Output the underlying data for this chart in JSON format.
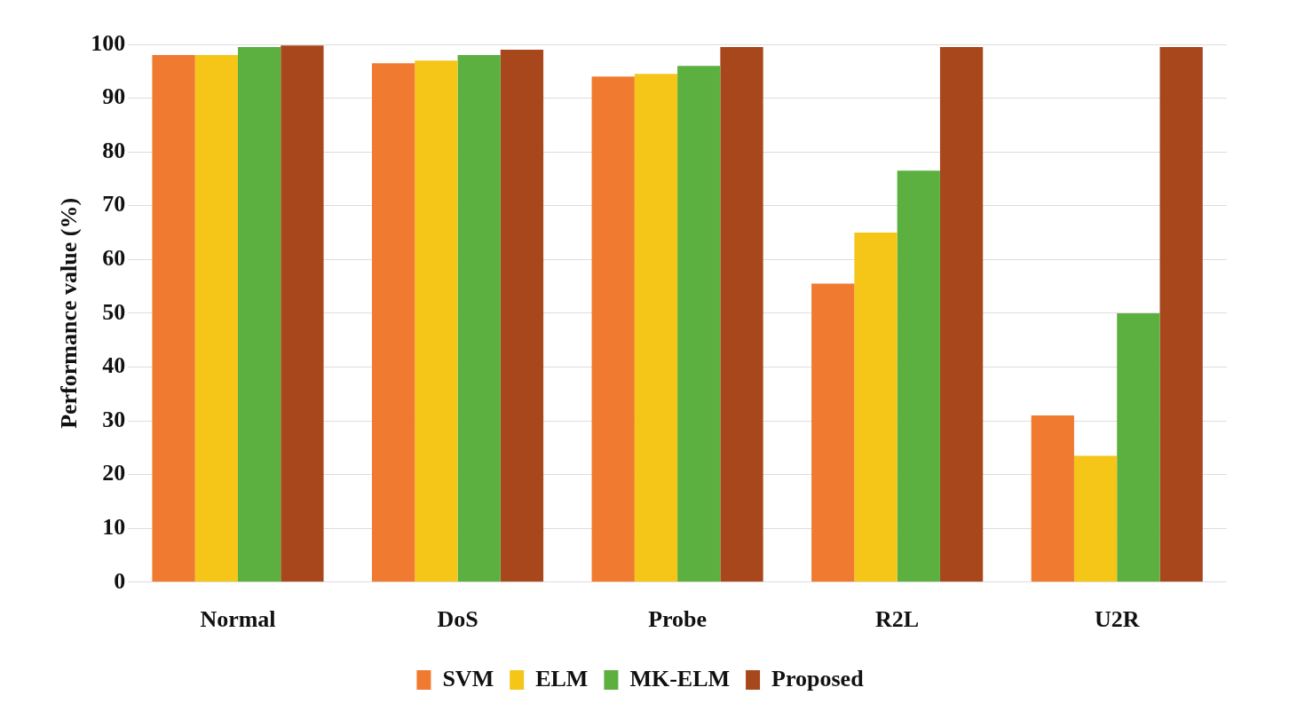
{
  "chart_data": {
    "type": "bar",
    "ylabel": "Performance value (%)",
    "categories": [
      "Normal",
      "DoS",
      "Probe",
      "R2L",
      "U2R"
    ],
    "series": [
      {
        "name": "SVM",
        "color": "#f07a30",
        "values": [
          98,
          96.5,
          94,
          55.5,
          31
        ]
      },
      {
        "name": "ELM",
        "color": "#f5c518",
        "values": [
          98,
          97,
          94.5,
          65,
          23.5
        ]
      },
      {
        "name": "MK-ELM",
        "color": "#5cb040",
        "values": [
          99.5,
          98,
          96,
          76.5,
          50
        ]
      },
      {
        "name": "Proposed",
        "color": "#a8461c",
        "values": [
          99.8,
          99,
          99.5,
          99.5,
          99.5
        ]
      }
    ],
    "ylim": [
      0,
      100
    ],
    "yticks": [
      0,
      10,
      20,
      30,
      40,
      50,
      60,
      70,
      80,
      90,
      100
    ],
    "grid": "y",
    "legend": "bottom"
  }
}
